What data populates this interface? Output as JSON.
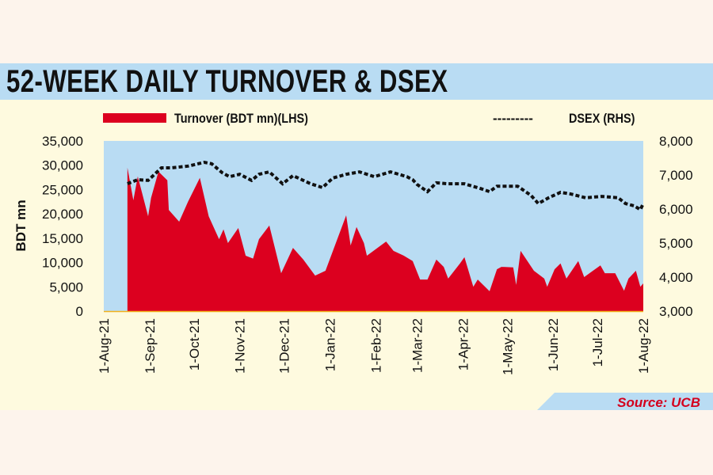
{
  "title": "52-WEEK DAILY TURNOVER & DSEX",
  "source": "Source: UCB",
  "colors": {
    "turnover": "#dc001f",
    "dsex": "#111111",
    "plot_bg": "#b9dcf3",
    "card_bg": "#fefadf"
  },
  "chart_data": {
    "type": "area+line",
    "title": "52-WEEK DAILY TURNOVER & DSEX",
    "ylabel": "BDT mn",
    "x_unit": "days since 1-Aug-21",
    "xlim": [
      0,
      365
    ],
    "x_ticks": [
      {
        "day": 0,
        "label": "1-Aug-21"
      },
      {
        "day": 31,
        "label": "1-Sep-21"
      },
      {
        "day": 61,
        "label": "1-Oct-21"
      },
      {
        "day": 92,
        "label": "1-Nov-21"
      },
      {
        "day": 122,
        "label": "1-Dec-21"
      },
      {
        "day": 153,
        "label": "1-Jan-22"
      },
      {
        "day": 184,
        "label": "1-Feb-22"
      },
      {
        "day": 212,
        "label": "1-Mar-22"
      },
      {
        "day": 243,
        "label": "1-Apr-22"
      },
      {
        "day": 273,
        "label": "1-May-22"
      },
      {
        "day": 304,
        "label": "1-Jun-22"
      },
      {
        "day": 334,
        "label": "1-Jul-22"
      },
      {
        "day": 365,
        "label": "1-Aug-22"
      }
    ],
    "y_left": {
      "range": [
        0,
        35000
      ],
      "ticks": [
        "0",
        "5,000",
        "10,000",
        "15,000",
        "20,000",
        "25,000",
        "30,000",
        "35,000"
      ],
      "tick_values": [
        0,
        5000,
        10000,
        15000,
        20000,
        25000,
        30000,
        35000
      ]
    },
    "y_right": {
      "range": [
        3000,
        8000
      ],
      "ticks": [
        "3,000",
        "4,000",
        "5,000",
        "6,000",
        "7,000",
        "8,000"
      ],
      "tick_values": [
        3000,
        4000,
        5000,
        6000,
        7000,
        8000
      ]
    },
    "legend": {
      "position": "top",
      "entries": [
        "Turnover (BDT mn)(LHS)",
        "DSEX (RHS)"
      ],
      "dsex_marker": "---------"
    },
    "series": [
      {
        "name": "Turnover (BDT mn)(LHS)",
        "type": "area",
        "axis": "left",
        "x": [
          16,
          20,
          23,
          30,
          32,
          37,
          43,
          44,
          51,
          57,
          65,
          71,
          78,
          81,
          84,
          91,
          96,
          101,
          105,
          112,
          120,
          128,
          135,
          143,
          150,
          157,
          164,
          167,
          171,
          176,
          178,
          191,
          196,
          203,
          209,
          214,
          219,
          225,
          230,
          233,
          241,
          244,
          250,
          253,
          261,
          266,
          269,
          277,
          279,
          282,
          291,
          298,
          300,
          305,
          309,
          313,
          321,
          325,
          330,
          336,
          339,
          346,
          352,
          355,
          360,
          363,
          365
        ],
        "values": [
          29500,
          22800,
          27700,
          19500,
          23300,
          28700,
          26900,
          20800,
          18400,
          22500,
          27400,
          19500,
          14800,
          16800,
          14000,
          17100,
          11400,
          10800,
          14800,
          17600,
          7800,
          13000,
          10600,
          7300,
          8300,
          14000,
          19700,
          13500,
          17300,
          14000,
          11400,
          14300,
          12400,
          11400,
          10300,
          6500,
          6500,
          10600,
          9100,
          6700,
          9800,
          11100,
          5000,
          6500,
          4100,
          8600,
          9100,
          9000,
          5400,
          12400,
          8300,
          6700,
          5000,
          8600,
          9800,
          6700,
          10300,
          7000,
          8100,
          9400,
          7800,
          7800,
          4200,
          6700,
          8300,
          5000,
          5700
        ]
      },
      {
        "name": "DSEX (RHS)",
        "type": "line",
        "axis": "right",
        "x": [
          16,
          23,
          30,
          39,
          46,
          57,
          68,
          73,
          80,
          85,
          92,
          100,
          105,
          112,
          121,
          128,
          140,
          148,
          155,
          164,
          173,
          183,
          194,
          205,
          209,
          212,
          219,
          225,
          233,
          244,
          255,
          261,
          266,
          280,
          289,
          294,
          301,
          309,
          316,
          326,
          337,
          348,
          353,
          359,
          363,
          365
        ],
        "values": [
          6744,
          6860,
          6840,
          7210,
          7210,
          7260,
          7370,
          7330,
          7070,
          6950,
          7020,
          6840,
          7020,
          7090,
          6740,
          6980,
          6740,
          6630,
          6910,
          7020,
          7090,
          6950,
          7090,
          6950,
          6860,
          6720,
          6510,
          6770,
          6740,
          6740,
          6600,
          6510,
          6670,
          6670,
          6400,
          6160,
          6330,
          6490,
          6440,
          6330,
          6370,
          6330,
          6160,
          6090,
          5980,
          6160
        ]
      }
    ]
  }
}
